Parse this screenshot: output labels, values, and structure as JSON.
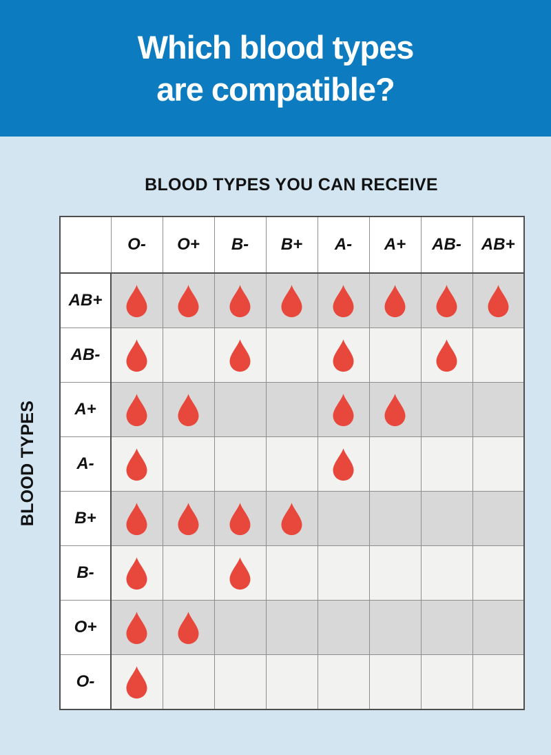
{
  "banner": {
    "title_lines": [
      "Which blood types",
      "are compatible?"
    ]
  },
  "chart_data": {
    "type": "table",
    "title": "BLOOD TYPES YOU CAN RECEIVE",
    "row_axis_label": "BLOOD TYPES",
    "columns": [
      "O-",
      "O+",
      "B-",
      "B+",
      "A-",
      "A+",
      "AB-",
      "AB+"
    ],
    "rows": [
      "AB+",
      "AB-",
      "A+",
      "A-",
      "B+",
      "B-",
      "O+",
      "O-"
    ],
    "matrix": [
      [
        1,
        1,
        1,
        1,
        1,
        1,
        1,
        1
      ],
      [
        1,
        0,
        1,
        0,
        1,
        0,
        1,
        0
      ],
      [
        1,
        1,
        0,
        0,
        1,
        1,
        0,
        0
      ],
      [
        1,
        0,
        0,
        0,
        1,
        0,
        0,
        0
      ],
      [
        1,
        1,
        1,
        1,
        0,
        0,
        0,
        0
      ],
      [
        1,
        0,
        1,
        0,
        0,
        0,
        0,
        0
      ],
      [
        1,
        1,
        0,
        0,
        0,
        0,
        0,
        0
      ],
      [
        1,
        0,
        0,
        0,
        0,
        0,
        0,
        0
      ]
    ],
    "cell_marker_icon": "blood-drop-icon",
    "row_shading_pattern": [
      "shaded",
      "light",
      "shaded",
      "light",
      "shaded",
      "light",
      "shaded",
      "light"
    ]
  },
  "colors": {
    "banner_blue": "#0d7bc0",
    "page_light_blue": "#d3e5f1",
    "drop_red": "#e8483c",
    "row_shaded_gray": "#d8d8d8",
    "row_light_gray": "#f2f2f1",
    "header_cell_white": "#ffffff",
    "title_text_white": "#ffffff",
    "table_text_black": "#121212"
  }
}
